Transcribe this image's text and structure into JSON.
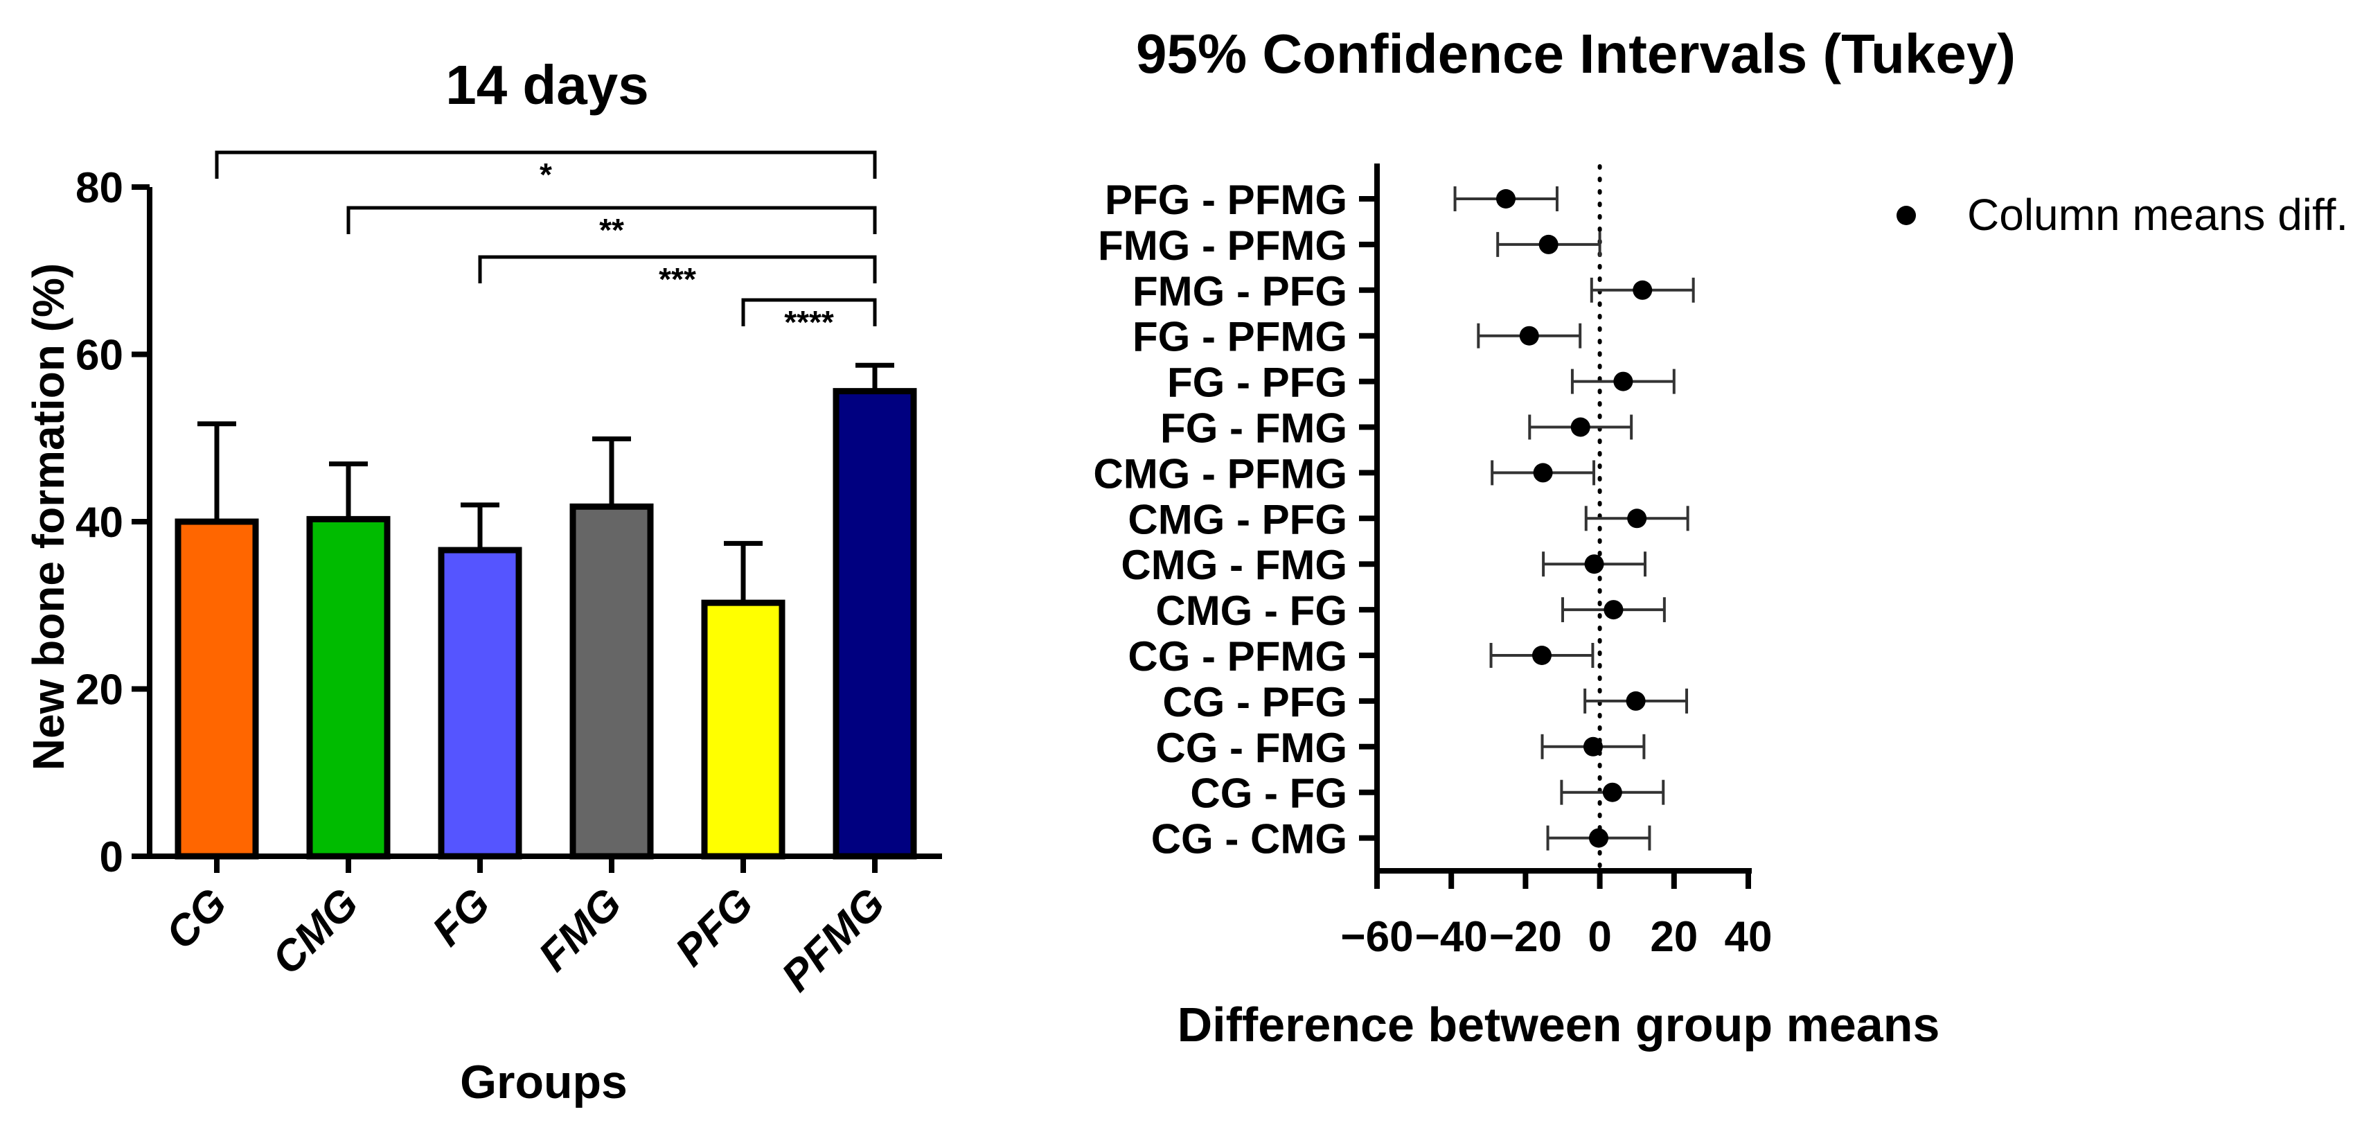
{
  "chart_data": [
    {
      "type": "bar",
      "title": "14 days",
      "xlabel": "Groups",
      "ylabel": "New bone formation (%)",
      "ylim": [
        0,
        80
      ],
      "yticks": [
        0,
        20,
        40,
        60,
        80
      ],
      "categories": [
        "CG",
        "CMG",
        "FG",
        "FMG",
        "PFG",
        "PFMG"
      ],
      "values": [
        40,
        40.3,
        36.6,
        41.8,
        30.3,
        55.6
      ],
      "errors": [
        11.7,
        6.6,
        5.4,
        8.1,
        7.1,
        3.1
      ],
      "colors": [
        "#ff6600",
        "#00bb00",
        "#5555ff",
        "#666666",
        "#ffff00",
        "#000080"
      ],
      "significance": [
        {
          "from": "CG",
          "to": "PFMG",
          "label": "*"
        },
        {
          "from": "CMG",
          "to": "PFMG",
          "label": "**"
        },
        {
          "from": "FG",
          "to": "PFMG",
          "label": "***"
        },
        {
          "from": "PFG",
          "to": "PFMG",
          "label": "****"
        }
      ]
    },
    {
      "type": "scatter",
      "subtype": "interval-plot",
      "title": "95% Confidence Intervals (Tukey)",
      "xlabel": "Difference between group means",
      "ylabel": "",
      "xlim": [
        -60,
        40
      ],
      "xticks": [
        -60,
        -40,
        -20,
        0,
        20,
        40
      ],
      "xtick_labels": [
        "−60",
        "−40",
        "−20",
        "0",
        "20",
        "40"
      ],
      "reference_line": 0,
      "legend": {
        "label": "Column means diff.",
        "position": "top-right"
      },
      "comparisons": [
        {
          "label": "PFG - PFMG",
          "mean": -25.3,
          "lower": -39,
          "upper": -11.5
        },
        {
          "label": "FMG - PFMG",
          "mean": -13.8,
          "lower": -27.5,
          "upper": 0
        },
        {
          "label": "FMG - PFG",
          "mean": 11.5,
          "lower": -2.2,
          "upper": 25.2
        },
        {
          "label": "FG - PFMG",
          "mean": -19,
          "lower": -32.7,
          "upper": -5.3
        },
        {
          "label": "FG - PFG",
          "mean": 6.3,
          "lower": -7.4,
          "upper": 20
        },
        {
          "label": "FG - FMG",
          "mean": -5.2,
          "lower": -18.9,
          "upper": 8.5
        },
        {
          "label": "CMG - PFMG",
          "mean": -15.3,
          "lower": -29,
          "upper": -1.6
        },
        {
          "label": "CMG - PFG",
          "mean": 10,
          "lower": -3.7,
          "upper": 23.7
        },
        {
          "label": "CMG - FMG",
          "mean": -1.5,
          "lower": -15.2,
          "upper": 12.2
        },
        {
          "label": "CMG - FG",
          "mean": 3.7,
          "lower": -10,
          "upper": 17.4
        },
        {
          "label": "CG - PFMG",
          "mean": -15.6,
          "lower": -29.3,
          "upper": -1.9
        },
        {
          "label": "CG - PFG",
          "mean": 9.7,
          "lower": -4,
          "upper": 23.4
        },
        {
          "label": "CG - FMG",
          "mean": -1.8,
          "lower": -15.5,
          "upper": 11.9
        },
        {
          "label": "CG - FG",
          "mean": 3.4,
          "lower": -10.3,
          "upper": 17.1
        },
        {
          "label": "CG - CMG",
          "mean": -0.3,
          "lower": -14,
          "upper": 13.4
        }
      ]
    }
  ]
}
